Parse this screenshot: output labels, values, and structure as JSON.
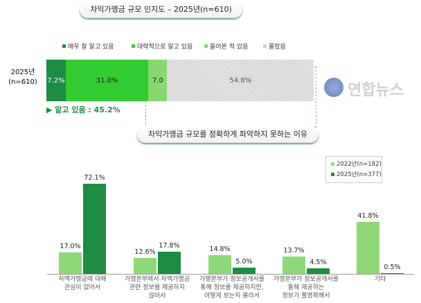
{
  "chart_data": [
    {
      "type": "bar",
      "stacked": true,
      "orientation": "horizontal",
      "title": "차익가맹금 규모 인지도 – 2025년(n=610)",
      "categories": [
        "2025년\n(n=610)"
      ],
      "category_label_lines": [
        "2025년",
        "(n=610)"
      ],
      "series": [
        {
          "name": "매우 잘 알고 있음",
          "values": [
            7.2
          ],
          "label": "7.2%",
          "color": "#1e8c45"
        },
        {
          "name": "대략적으로 알고 있음",
          "values": [
            31.0
          ],
          "label": "31.0%",
          "color": "#33cc33"
        },
        {
          "name": "들어본 적 있음",
          "values": [
            7.0
          ],
          "label": "7.0",
          "color": "#88d870"
        },
        {
          "name": "몰랐음",
          "values": [
            54.8
          ],
          "label": "54.8%",
          "color": "#d0d0d0"
        }
      ],
      "annotation": "▶ 알고 있음 : 45.2%",
      "legend": "top"
    },
    {
      "type": "bar",
      "title": "차익가맹금 규모를 정확하게 파악하지 못하는 이유",
      "categories": [
        [
          "차액가맹금에 대해",
          "관심이 없어서"
        ],
        [
          "가맹본부에서 차액가맹금",
          "관련 정보를 제공하지",
          "않아서"
        ],
        [
          "가맹본부가 정보공개서를",
          "통해 정보를 제공하지만,",
          "어떻게 보는지 몰라서"
        ],
        [
          "가맹본부가 정보공개서를",
          "통해 제공하는",
          "정보가 불명확해서"
        ],
        [
          "기타"
        ]
      ],
      "series": [
        {
          "name": "2022년(n=182)",
          "values": [
            17.0,
            12.6,
            14.8,
            13.7,
            41.8
          ],
          "labels": [
            "17.0%",
            "12.6%",
            "14.8%",
            "13.7%",
            "41.8%"
          ],
          "color": "#8fd87a"
        },
        {
          "name": "2025년(n=377)",
          "values": [
            72.1,
            17.8,
            5.0,
            4.5,
            0.5
          ],
          "labels": [
            "72.1%",
            "17.8%",
            "5.0%",
            "4.5%",
            "0.5%"
          ],
          "color": "#1e8c45"
        }
      ],
      "legend": "top-right",
      "ylim": [
        0,
        80
      ]
    }
  ],
  "watermark": "연합뉴스"
}
